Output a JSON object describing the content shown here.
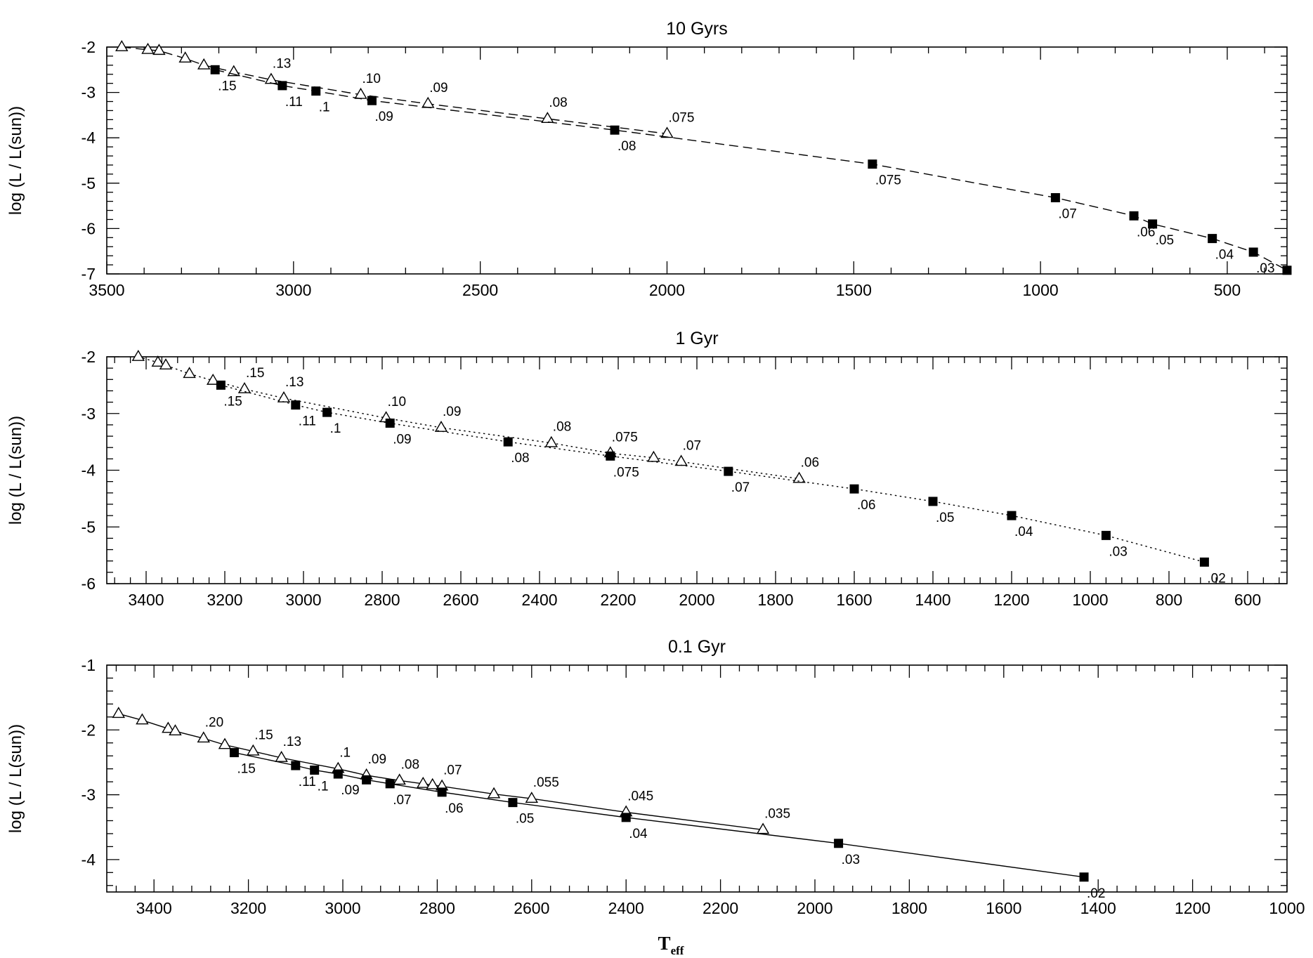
{
  "figure": {
    "xlabel": "T",
    "xlabel_sub": "eff"
  },
  "chart_data": [
    {
      "type": "line",
      "title": "10 Gyrs",
      "ylabel": "log (L / L(sun))",
      "xlim": [
        3500,
        340
      ],
      "ylim": [
        -7,
        -2
      ],
      "xticks": [
        3500,
        3000,
        2500,
        2000,
        1500,
        1000,
        500
      ],
      "xtick_labels": [
        "3500",
        "3000",
        "2500",
        "2000",
        "1500",
        "1000",
        "500"
      ],
      "yticks": [
        -2,
        -3,
        -4,
        -5,
        -6,
        -7
      ],
      "ytick_labels": [
        "-2",
        "-3",
        "-4",
        "-5",
        "-6",
        "-7"
      ],
      "series": [
        {
          "name": "open-triangles",
          "marker": "triangle",
          "linestyle": "dashed",
          "x": [
            3460,
            3390,
            3360,
            3290,
            3240,
            3160,
            3060,
            2820,
            2640,
            2320,
            2000
          ],
          "y": [
            -2.0,
            -2.06,
            -2.08,
            -2.25,
            -2.4,
            -2.55,
            -2.72,
            -3.05,
            -3.25,
            -3.58,
            -3.91
          ],
          "labels": [
            "",
            "",
            "",
            "",
            "",
            "",
            ".13",
            ".10",
            ".09",
            ".08",
            ".075"
          ]
        },
        {
          "name": "filled-squares",
          "marker": "square",
          "linestyle": "dashed",
          "x": [
            3210,
            3030,
            2940,
            2790,
            2140,
            1450,
            960,
            750,
            700,
            540,
            430,
            340
          ],
          "y": [
            -2.5,
            -2.85,
            -2.97,
            -3.18,
            -3.83,
            -4.58,
            -5.32,
            -5.72,
            -5.9,
            -6.22,
            -6.52,
            -6.92
          ],
          "labels": [
            ".15",
            ".11",
            ".1",
            ".09",
            ".08",
            ".075",
            ".07",
            ".06",
            ".05",
            ".04",
            ".03",
            ""
          ]
        }
      ]
    },
    {
      "type": "line",
      "title": "1 Gyr",
      "ylabel": "log (L / L(sun))",
      "xlim": [
        3500,
        500
      ],
      "ylim": [
        -6,
        -2
      ],
      "xticks": [
        3400,
        3200,
        3000,
        2800,
        2600,
        2400,
        2200,
        2000,
        1800,
        1600,
        1400,
        1200,
        1000,
        800,
        600
      ],
      "xtick_labels": [
        "3400",
        "3200",
        "3000",
        "2800",
        "2600",
        "2400",
        "2200",
        "2000",
        "1800",
        "1600",
        "1400",
        "1200",
        "1000",
        "800",
        "600"
      ],
      "yticks": [
        -2,
        -3,
        -4,
        -5,
        -6
      ],
      "ytick_labels": [
        "-2",
        "-3",
        "-4",
        "-5",
        "-6"
      ],
      "series": [
        {
          "name": "open-triangles",
          "marker": "triangle",
          "linestyle": "dotted",
          "x": [
            3420,
            3370,
            3350,
            3290,
            3230,
            3150,
            3050,
            2790,
            2650,
            2370,
            2220,
            2110,
            2040,
            1740
          ],
          "y": [
            -2.0,
            -2.1,
            -2.15,
            -2.3,
            -2.42,
            -2.57,
            -2.73,
            -3.08,
            -3.25,
            -3.52,
            -3.7,
            -3.78,
            -3.85,
            -4.15
          ],
          "labels": [
            "",
            "",
            "",
            "",
            "",
            ".15",
            ".13",
            ".10",
            ".09",
            ".08",
            ".075",
            "",
            ".07",
            ".06"
          ]
        },
        {
          "name": "filled-squares",
          "marker": "square",
          "linestyle": "dotted",
          "x": [
            3210,
            3020,
            2940,
            2780,
            2480,
            2220,
            1920,
            1600,
            1400,
            1200,
            960,
            710
          ],
          "y": [
            -2.5,
            -2.85,
            -2.98,
            -3.17,
            -3.5,
            -3.75,
            -4.02,
            -4.33,
            -4.55,
            -4.8,
            -5.15,
            -5.62
          ],
          "labels": [
            ".15",
            ".11",
            ".1",
            ".09",
            ".08",
            ".075",
            ".07",
            ".06",
            ".05",
            ".04",
            ".03",
            ".02"
          ]
        }
      ]
    },
    {
      "type": "line",
      "title": "0.1 Gyr",
      "ylabel": "log (L / L(sun))",
      "xlim": [
        3500,
        1000
      ],
      "ylim": [
        -4.5,
        -1
      ],
      "xticks": [
        3400,
        3200,
        3000,
        2800,
        2600,
        2400,
        2200,
        2000,
        1800,
        1600,
        1400,
        1200,
        1000
      ],
      "xtick_labels": [
        "3400",
        "3200",
        "3000",
        "2800",
        "2600",
        "2400",
        "2200",
        "2000",
        "1800",
        "1600",
        "1400",
        "1200",
        "1000"
      ],
      "yticks": [
        -1,
        -2,
        -3,
        -4
      ],
      "ytick_labels": [
        "-1",
        "-2",
        "-3",
        "-4"
      ],
      "series": [
        {
          "name": "open-triangles",
          "marker": "triangle",
          "linestyle": "solid",
          "x": [
            3475,
            3425,
            3370,
            3355,
            3295,
            3250,
            3190,
            3130,
            3010,
            2950,
            2880,
            2830,
            2810,
            2790,
            2680,
            2600,
            2400,
            2110
          ],
          "y": [
            -1.75,
            -1.85,
            -1.98,
            -2.02,
            -2.13,
            -2.23,
            -2.33,
            -2.43,
            -2.6,
            -2.7,
            -2.78,
            -2.83,
            -2.85,
            -2.87,
            -2.99,
            -3.06,
            -3.27,
            -3.54
          ],
          "labels": [
            "",
            "",
            "",
            "",
            ".20",
            "",
            ".15",
            ".13",
            ".1",
            ".09",
            ".08",
            "",
            "",
            ".07",
            "",
            ".055",
            ".045",
            ".035"
          ]
        },
        {
          "name": "filled-squares",
          "marker": "square",
          "linestyle": "solid",
          "x": [
            3230,
            3100,
            3060,
            3010,
            2950,
            2900,
            2790,
            2640,
            2400,
            1950,
            1430
          ],
          "y": [
            -2.35,
            -2.55,
            -2.62,
            -2.68,
            -2.77,
            -2.83,
            -2.96,
            -3.12,
            -3.35,
            -3.75,
            -4.27
          ],
          "labels": [
            ".15",
            ".11",
            ".1",
            ".09",
            "",
            ".07",
            ".06",
            ".05",
            ".04",
            ".03",
            ".02"
          ]
        }
      ]
    }
  ]
}
